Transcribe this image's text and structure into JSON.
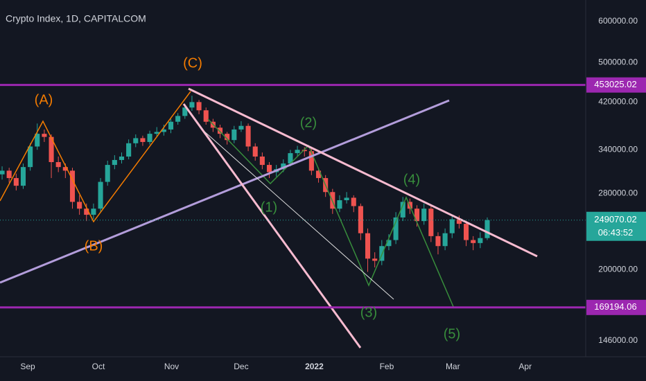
{
  "chart_data": {
    "type": "candlestick",
    "title": "Crypto Index, 1D, CAPITALCOM",
    "log_scale": true,
    "grid": true,
    "up_color": "#26a69a",
    "down_color": "#ef5350",
    "ylim": [
      136000,
      660000
    ],
    "yticks": [
      {
        "value": 146000,
        "label": "146000.00"
      },
      {
        "value": 200000,
        "label": "200000.00"
      },
      {
        "value": 280000,
        "label": "280000.00"
      },
      {
        "value": 340000,
        "label": "340000.00"
      },
      {
        "value": 420000,
        "label": "420000.00"
      },
      {
        "value": 500000,
        "label": "500000.00"
      },
      {
        "value": 600000,
        "label": "600000.00"
      }
    ],
    "xlim": [
      -0.3,
      83
    ],
    "xticks": [
      {
        "value": 3.65,
        "label": "Sep"
      },
      {
        "value": 13.7,
        "label": "Oct"
      },
      {
        "value": 24.1,
        "label": "Nov"
      },
      {
        "value": 34,
        "label": "Dec"
      },
      {
        "value": 44.4,
        "label": "2022"
      },
      {
        "value": 54.7,
        "label": "Feb"
      },
      {
        "value": 64.1,
        "label": "Mar"
      },
      {
        "value": 74.4,
        "label": "Apr"
      }
    ],
    "candles": [
      [
        305000,
        316000,
        298000,
        310000
      ],
      [
        310000,
        314000,
        294000,
        300000
      ],
      [
        300000,
        306000,
        284000,
        290000
      ],
      [
        290000,
        320000,
        286000,
        315000
      ],
      [
        315000,
        350000,
        310000,
        345000
      ],
      [
        345000,
        382000,
        340000,
        365000
      ],
      [
        365000,
        372000,
        352000,
        360000
      ],
      [
        360000,
        364000,
        300000,
        322000
      ],
      [
        322000,
        330000,
        308000,
        315000
      ],
      [
        315000,
        320000,
        300000,
        310000
      ],
      [
        310000,
        314000,
        262000,
        270000
      ],
      [
        270000,
        278000,
        255000,
        262000
      ],
      [
        262000,
        268000,
        248000,
        255000
      ],
      [
        255000,
        268000,
        250000,
        262000
      ],
      [
        262000,
        300000,
        258000,
        295000
      ],
      [
        295000,
        324000,
        290000,
        318000
      ],
      [
        318000,
        332000,
        312000,
        325000
      ],
      [
        325000,
        336000,
        320000,
        330000
      ],
      [
        330000,
        356000,
        326000,
        350000
      ],
      [
        350000,
        364000,
        344000,
        358000
      ],
      [
        358000,
        362000,
        346000,
        352000
      ],
      [
        352000,
        370000,
        348000,
        365000
      ],
      [
        365000,
        376000,
        360000,
        368000
      ],
      [
        368000,
        380000,
        362000,
        372000
      ],
      [
        372000,
        390000,
        366000,
        385000
      ],
      [
        385000,
        400000,
        380000,
        395000
      ],
      [
        395000,
        416000,
        390000,
        410000
      ],
      [
        410000,
        432000,
        404000,
        420000
      ],
      [
        420000,
        424000,
        398000,
        405000
      ],
      [
        405000,
        410000,
        380000,
        385000
      ],
      [
        385000,
        390000,
        368000,
        375000
      ],
      [
        375000,
        380000,
        358000,
        365000
      ],
      [
        365000,
        368000,
        348000,
        355000
      ],
      [
        355000,
        378000,
        350000,
        372000
      ],
      [
        372000,
        386000,
        368000,
        378000
      ],
      [
        378000,
        382000,
        338000,
        345000
      ],
      [
        345000,
        350000,
        324000,
        330000
      ],
      [
        330000,
        336000,
        312000,
        318000
      ],
      [
        318000,
        322000,
        300000,
        308000
      ],
      [
        308000,
        318000,
        302000,
        312000
      ],
      [
        312000,
        326000,
        308000,
        320000
      ],
      [
        320000,
        340000,
        316000,
        335000
      ],
      [
        335000,
        346000,
        330000,
        340000
      ],
      [
        340000,
        344000,
        330000,
        338000
      ],
      [
        338000,
        342000,
        304000,
        310000
      ],
      [
        310000,
        314000,
        294000,
        300000
      ],
      [
        300000,
        304000,
        276000,
        282000
      ],
      [
        282000,
        286000,
        256000,
        262000
      ],
      [
        262000,
        278000,
        258000,
        272000
      ],
      [
        272000,
        282000,
        268000,
        275000
      ],
      [
        275000,
        278000,
        258000,
        265000
      ],
      [
        265000,
        268000,
        228000,
        235000
      ],
      [
        235000,
        240000,
        198000,
        210000
      ],
      [
        210000,
        216000,
        202000,
        208000
      ],
      [
        208000,
        228000,
        204000,
        222000
      ],
      [
        222000,
        234000,
        218000,
        228000
      ],
      [
        228000,
        258000,
        224000,
        252000
      ],
      [
        252000,
        276000,
        248000,
        270000
      ],
      [
        270000,
        274000,
        256000,
        262000
      ],
      [
        262000,
        266000,
        242000,
        248000
      ],
      [
        248000,
        268000,
        244000,
        262000
      ],
      [
        262000,
        266000,
        226000,
        232000
      ],
      [
        232000,
        236000,
        214000,
        222000
      ],
      [
        222000,
        240000,
        218000,
        235000
      ],
      [
        235000,
        255000,
        230000,
        250000
      ],
      [
        250000,
        254000,
        240000,
        245000
      ],
      [
        245000,
        248000,
        222000,
        228000
      ],
      [
        228000,
        232000,
        218000,
        225000
      ],
      [
        225000,
        236000,
        220000,
        230000
      ],
      [
        230000,
        252000,
        228000,
        249070.02
      ]
    ],
    "horizontal_levels": [
      {
        "value": 453025.02,
        "color": "#9c27b0"
      },
      {
        "value": 169194.06,
        "color": "#9c27b0"
      }
    ],
    "countdown": "06:43:52",
    "annotations": [
      {
        "text": "(A)",
        "color": "#f57c00"
      },
      {
        "text": "(B)",
        "color": "#f57c00"
      },
      {
        "text": "(C)",
        "color": "#f57c00"
      },
      {
        "text": "(1)",
        "color": "#388e3c"
      },
      {
        "text": "(2)",
        "color": "#388e3c"
      },
      {
        "text": "(3)",
        "color": "#388e3c"
      },
      {
        "text": "(4)",
        "color": "#388e3c"
      },
      {
        "text": "(5)",
        "color": "#388e3c"
      }
    ]
  }
}
